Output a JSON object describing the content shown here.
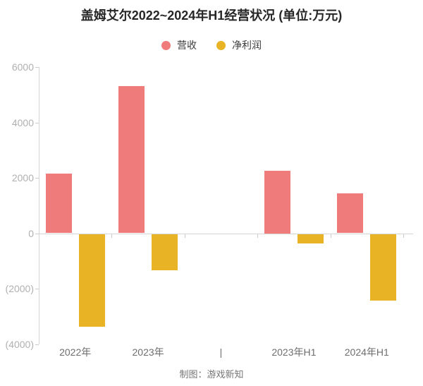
{
  "header": {
    "title": "盖姆艾尔2022~2024年H1经营状况 (单位:万元)"
  },
  "footer": {
    "credit": "制图：游戏新知"
  },
  "chart_data": {
    "type": "bar",
    "title": "盖姆艾尔2022~2024年H1经营状况 (单位:万元)",
    "categories": [
      "2022年",
      "2023年",
      "|",
      "2023年H1",
      "2024年H1"
    ],
    "separator_category_index": 2,
    "series": [
      {
        "name": "营收",
        "color": "#ef7b7b",
        "values": [
          2150,
          5300,
          null,
          2250,
          1450
        ]
      },
      {
        "name": "净利润",
        "color": "#e8b425",
        "values": [
          -3350,
          -1300,
          null,
          -350,
          -2400
        ]
      }
    ],
    "ylim": [
      -4000,
      6000
    ],
    "yticks": [
      {
        "value": 6000,
        "label": "6000"
      },
      {
        "value": 4000,
        "label": "4000"
      },
      {
        "value": 2000,
        "label": "2000"
      },
      {
        "value": 0,
        "label": "0"
      },
      {
        "value": -2000,
        "label": "(2000)"
      },
      {
        "value": -4000,
        "label": "(4000)"
      }
    ],
    "grid": false,
    "legend_position": "top",
    "xlabel": "",
    "ylabel": ""
  }
}
